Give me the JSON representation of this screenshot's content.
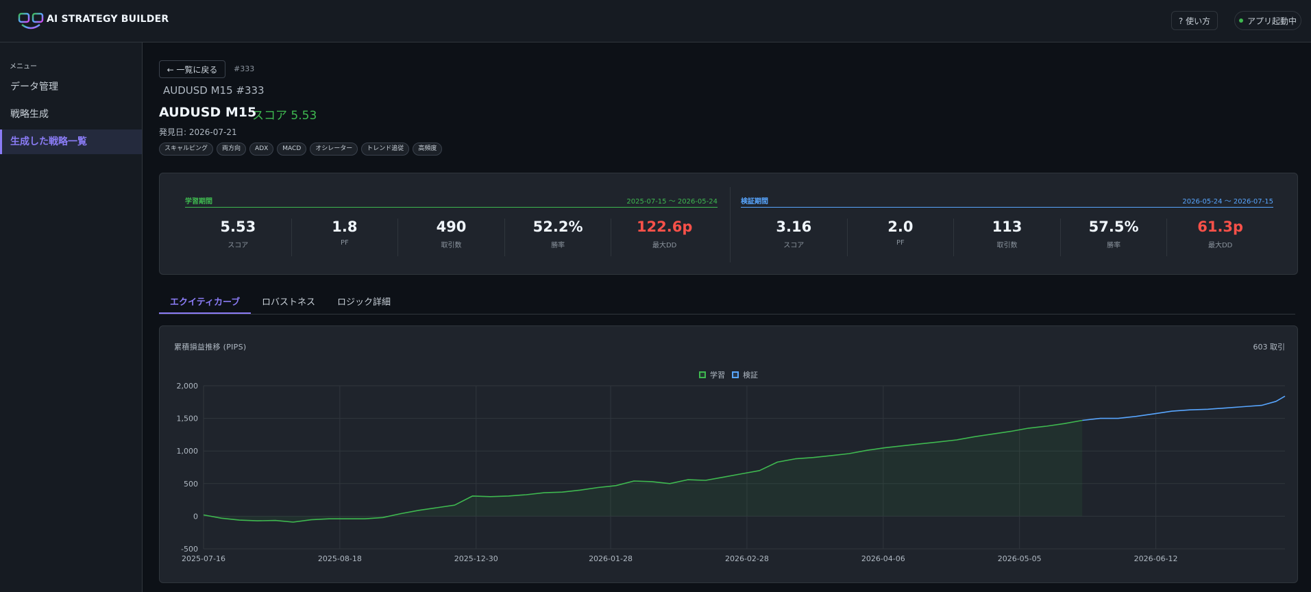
{
  "app": {
    "brand": "AI STRATEGY BUILDER",
    "help_label": "? 使い方",
    "status_label": "アプリ起動中"
  },
  "sidebar": {
    "menu_label": "メニュー",
    "items": [
      {
        "label": "データ管理",
        "active": false
      },
      {
        "label": "戦略生成",
        "active": false
      },
      {
        "label": "生成した戦略一覧",
        "active": true
      }
    ]
  },
  "header": {
    "back_label": "← 一覧に戻る",
    "id_tag": "#333",
    "subtitle": "AUDUSD M15 #333",
    "title": "AUDUSD M15",
    "score_label": "スコア 5.53",
    "found_date": "発見日: 2026-07-21",
    "tags": [
      "スキャルピング",
      "両方向",
      "ADX",
      "MACD",
      "オシレーター",
      "トレンド追従",
      "高頻度"
    ]
  },
  "stats": {
    "train": {
      "name": "学習期間",
      "range": "2025-07-15 〜 2026-05-24",
      "color": "#3fb950",
      "metrics": [
        {
          "value": "5.53",
          "label": "スコア",
          "red": false
        },
        {
          "value": "1.8",
          "label": "PF",
          "red": false
        },
        {
          "value": "490",
          "label": "取引数",
          "red": false
        },
        {
          "value": "52.2%",
          "label": "勝率",
          "red": false
        },
        {
          "value": "122.6p",
          "label": "最大DD",
          "red": true
        }
      ]
    },
    "test": {
      "name": "検証期間",
      "range": "2026-05-24 〜 2026-07-15",
      "color": "#58a6ff",
      "metrics": [
        {
          "value": "3.16",
          "label": "スコア",
          "red": false
        },
        {
          "value": "2.0",
          "label": "PF",
          "red": false
        },
        {
          "value": "113",
          "label": "取引数",
          "red": false
        },
        {
          "value": "57.5%",
          "label": "勝率",
          "red": false
        },
        {
          "value": "61.3p",
          "label": "最大DD",
          "red": true
        }
      ]
    }
  },
  "tabs": [
    "エクイティカーブ",
    "ロバストネス",
    "ロジック詳細"
  ],
  "chart": {
    "title": "累積損益推移 (PIPS)",
    "trade_count": "603 取引",
    "legend": [
      {
        "name": "学習",
        "color": "#3fb950"
      },
      {
        "name": "検証",
        "color": "#58a6ff"
      }
    ]
  },
  "chart_data": {
    "type": "line",
    "title": "累積損益推移 (PIPS)",
    "xlabel": "",
    "ylabel": "",
    "ylim": [
      -500,
      2000
    ],
    "yticks": [
      "2,000",
      "1,500",
      "1,000",
      "500",
      "0",
      "-500"
    ],
    "xticks": [
      "2025-07-16",
      "2025-08-18",
      "2025-12-30",
      "2026-01-28",
      "2026-02-28",
      "2026-04-06",
      "2026-05-05",
      "2026-06-12"
    ],
    "grid": true,
    "legend_position": "top-center",
    "trade_index_max": 603,
    "xtick_trade_index": [
      0,
      76,
      152,
      227,
      303,
      379,
      455,
      531
    ],
    "series": [
      {
        "name": "学習",
        "color": "#3fb950",
        "fill": true,
        "points": [
          [
            0,
            20
          ],
          [
            10,
            -30
          ],
          [
            20,
            -60
          ],
          [
            30,
            -70
          ],
          [
            40,
            -65
          ],
          [
            50,
            -90
          ],
          [
            60,
            -55
          ],
          [
            70,
            -40
          ],
          [
            80,
            -40
          ],
          [
            90,
            -40
          ],
          [
            100,
            -20
          ],
          [
            110,
            40
          ],
          [
            120,
            90
          ],
          [
            130,
            130
          ],
          [
            140,
            170
          ],
          [
            150,
            310
          ],
          [
            160,
            300
          ],
          [
            170,
            310
          ],
          [
            180,
            330
          ],
          [
            190,
            360
          ],
          [
            200,
            370
          ],
          [
            210,
            400
          ],
          [
            220,
            440
          ],
          [
            230,
            470
          ],
          [
            240,
            540
          ],
          [
            250,
            530
          ],
          [
            260,
            500
          ],
          [
            270,
            560
          ],
          [
            280,
            550
          ],
          [
            290,
            600
          ],
          [
            300,
            650
          ],
          [
            310,
            700
          ],
          [
            320,
            830
          ],
          [
            330,
            880
          ],
          [
            340,
            900
          ],
          [
            350,
            930
          ],
          [
            360,
            960
          ],
          [
            370,
            1010
          ],
          [
            380,
            1050
          ],
          [
            390,
            1080
          ],
          [
            400,
            1110
          ],
          [
            410,
            1140
          ],
          [
            420,
            1170
          ],
          [
            430,
            1220
          ],
          [
            440,
            1260
          ],
          [
            450,
            1300
          ],
          [
            460,
            1350
          ],
          [
            470,
            1380
          ],
          [
            480,
            1420
          ],
          [
            490,
            1470
          ]
        ]
      },
      {
        "name": "検証",
        "color": "#58a6ff",
        "fill": false,
        "points": [
          [
            490,
            1470
          ],
          [
            500,
            1500
          ],
          [
            510,
            1500
          ],
          [
            520,
            1530
          ],
          [
            530,
            1570
          ],
          [
            540,
            1610
          ],
          [
            550,
            1630
          ],
          [
            560,
            1640
          ],
          [
            570,
            1660
          ],
          [
            580,
            1680
          ],
          [
            590,
            1700
          ],
          [
            598,
            1760
          ],
          [
            603,
            1840
          ]
        ]
      }
    ]
  }
}
